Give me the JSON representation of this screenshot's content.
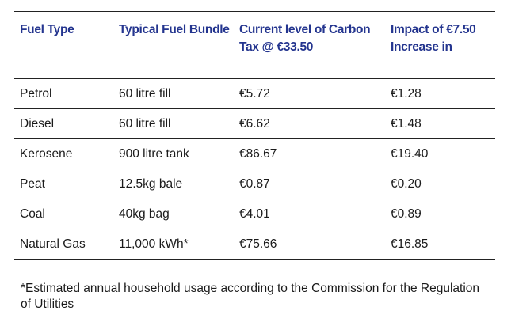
{
  "table": {
    "headers": [
      "Fuel Type",
      "Typical Fuel Bundle",
      "Current level of Carbon Tax @ €33.50",
      "Impact of €7.50 Increase in"
    ],
    "rows": [
      [
        "Petrol",
        "60 litre fill",
        "€5.72",
        "€1.28"
      ],
      [
        "Diesel",
        "60 litre fill",
        "€6.62",
        "€1.48"
      ],
      [
        "Kerosene",
        "900 litre tank",
        "€86.67",
        "€19.40"
      ],
      [
        "Peat",
        "12.5kg bale",
        "€0.87",
        "€0.20"
      ],
      [
        "Coal",
        "40kg bag",
        "€4.01",
        "€0.89"
      ],
      [
        "Natural Gas",
        "11,000 kWh*",
        "€75.66",
        "€16.85"
      ]
    ]
  },
  "footnote": "*Estimated annual household usage according to the Commission for the Regulation of Utilities",
  "colors": {
    "header_text": "#24358f",
    "rule": "#222222"
  }
}
